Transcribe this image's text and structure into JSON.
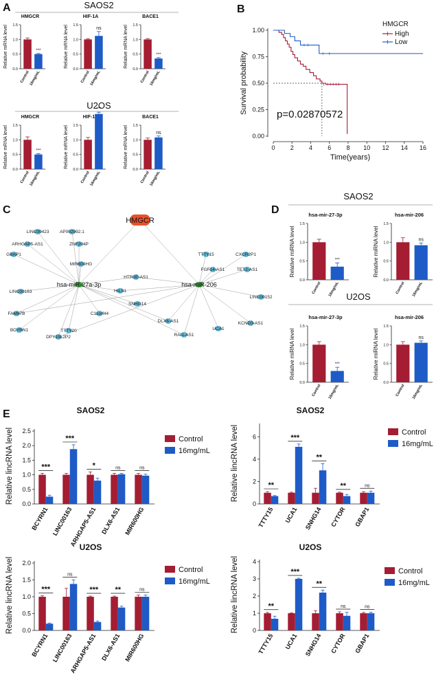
{
  "colors": {
    "control": "#a41d33",
    "treated": "#1e5bc6",
    "node": "#5bb5d4",
    "hub": "#e8522c",
    "mirnode": "#3a9a3a",
    "edge": "#999999",
    "axis": "#222222"
  },
  "panels": {
    "a": "A",
    "b": "B",
    "c": "C",
    "d": "D",
    "e": "E"
  },
  "panelA": {
    "group1": "SAOS2",
    "group2": "U2OS",
    "ylabel": "Relative mRNA level",
    "categories": [
      "Control",
      "16mg/mL"
    ],
    "yticks": [
      "0.0",
      "0.5",
      "1.0",
      "1.5"
    ],
    "charts": [
      {
        "title": "HMGCR",
        "values": [
          1.0,
          0.5
        ],
        "errors": [
          0.05,
          0.02
        ],
        "sig": "***"
      },
      {
        "title": "HIF-1A",
        "values": [
          1.0,
          1.12
        ],
        "errors": [
          0.02,
          0.15
        ],
        "sig": "ns"
      },
      {
        "title": "BACE1",
        "values": [
          1.0,
          0.35
        ],
        "errors": [
          0.03,
          0.03
        ],
        "sig": "***"
      },
      {
        "title": "HMGCR",
        "values": [
          1.0,
          0.5
        ],
        "errors": [
          0.1,
          0.03
        ],
        "sig": "***"
      },
      {
        "title": "HIF-1A",
        "values": [
          1.0,
          1.88
        ],
        "errors": [
          0.08,
          0.06
        ],
        "sig": "***"
      },
      {
        "title": "BACE1",
        "values": [
          1.0,
          1.08
        ],
        "errors": [
          0.06,
          0.05
        ],
        "sig": "ns"
      }
    ]
  },
  "panelB": {
    "legend_title": "HMGCR",
    "legend": [
      "High",
      "Low"
    ],
    "ylabel": "Survival probability",
    "xlabel": "Time(years)",
    "pvalue": "p=0.02870572",
    "xticks": [
      "0",
      "2",
      "4",
      "6",
      "8",
      "10",
      "12",
      "14",
      "16"
    ],
    "yticks": [
      "0.00",
      "0.25",
      "0.50",
      "0.75",
      "1.00"
    ],
    "median_x": 5.2
  },
  "panelC": {
    "hub": "HMGCR",
    "mir1": "hsa-miR-27a-3p",
    "mir2": "hsa-miR-206",
    "left": [
      "LINC00423",
      "AP002992.1",
      "ARHGAP5-AS1",
      "ZNF204P",
      "GBAP1",
      "MIR600HG",
      "LINC00163",
      "FAM87B",
      "BCYRN1",
      "DPY19L2P2",
      "TTTY20",
      "C11orf44",
      "HILS1",
      "SNHG14",
      "HTR3E-AS1"
    ],
    "right": [
      "TTTY15",
      "CXCR2P1",
      "FGF14-AS1",
      "TET2-AS1",
      "LINC00152",
      "KCND3-AS1",
      "UCA1",
      "RAI1-AS1",
      "DLX6-AS1"
    ]
  },
  "panelD": {
    "group1": "SAOS2",
    "group2": "U2OS",
    "ylabel": "Relative miRNA level",
    "categories": [
      "Control",
      "16mg/mL"
    ],
    "yticks": [
      "0.0",
      "0.5",
      "1.0",
      "1.5"
    ],
    "charts": [
      {
        "title": "hsa-mir-27-3p",
        "values": [
          1.0,
          0.35
        ],
        "errors": [
          0.08,
          0.1
        ],
        "sig": "***"
      },
      {
        "title": "hsa-mir-206",
        "values": [
          1.0,
          0.92
        ],
        "errors": [
          0.12,
          0.06
        ],
        "sig": "ns"
      },
      {
        "title": "hsa-mir-27-3p",
        "values": [
          1.0,
          0.3
        ],
        "errors": [
          0.08,
          0.1
        ],
        "sig": "***"
      },
      {
        "title": "hsa-mir-206",
        "values": [
          1.0,
          1.05
        ],
        "errors": [
          0.08,
          0.05
        ],
        "sig": "ns"
      }
    ]
  },
  "panelE": {
    "ylabel": "Relative lincRNA level",
    "legend": [
      "Control",
      "16mg/mL"
    ]
  },
  "chart_data": [
    {
      "type": "bar",
      "title": "SAOS2",
      "categories": [
        "BCYRN1",
        "LINC00163",
        "ARHGAP5-AS1",
        "DLX6-AS1",
        "MIR600HG"
      ],
      "series": [
        {
          "name": "Control",
          "values": [
            1.0,
            1.0,
            1.0,
            1.0,
            1.0
          ]
        },
        {
          "name": "16mg/mL",
          "values": [
            0.25,
            1.88,
            0.8,
            1.02,
            0.97
          ]
        }
      ],
      "errors": [
        [
          0.05,
          0.05,
          0.1,
          0.05,
          0.05
        ],
        [
          0.05,
          0.15,
          0.08,
          0.03,
          0.05
        ]
      ],
      "sig": [
        "***",
        "***",
        "*",
        "ns",
        "ns"
      ],
      "ylabel": "Relative lincRNA level",
      "ylim": [
        0,
        2.5
      ],
      "yticks": [
        "0.0",
        "0.5",
        "1.0",
        "1.5",
        "2.0",
        "2.5"
      ]
    },
    {
      "type": "bar",
      "title": "SAOS2",
      "categories": [
        "TTTY15",
        "UCA1",
        "SNHG14",
        "CYTOR",
        "GBAP1"
      ],
      "series": [
        {
          "name": "Control",
          "values": [
            1.0,
            1.0,
            1.0,
            1.0,
            1.0
          ]
        },
        {
          "name": "16mg/mL",
          "values": [
            0.7,
            5.1,
            3.0,
            0.7,
            1.0
          ]
        }
      ],
      "errors": [
        [
          0.1,
          0.05,
          0.4,
          0.05,
          0.1
        ],
        [
          0.05,
          0.25,
          0.6,
          0.15,
          0.15
        ]
      ],
      "sig": [
        "**",
        "***",
        "**",
        "**",
        "ns"
      ],
      "ylabel": "Relative lincRNA level",
      "ylim": [
        0,
        7
      ],
      "yticks": [
        "0",
        "2",
        "4",
        "6"
      ]
    },
    {
      "type": "bar",
      "title": "U2OS",
      "categories": [
        "BCYRN1",
        "LINC00163",
        "ARHGAP5-AS1",
        "DLX6-AS1",
        "MIR600HG"
      ],
      "series": [
        {
          "name": "Control",
          "values": [
            1.0,
            1.0,
            1.0,
            1.0,
            1.0
          ]
        },
        {
          "name": "16mg/mL",
          "values": [
            0.2,
            1.38,
            0.25,
            0.68,
            1.0
          ]
        }
      ],
      "errors": [
        [
          0.03,
          0.25,
          0.02,
          0.02,
          0.05
        ],
        [
          0.02,
          0.12,
          0.03,
          0.04,
          0.05
        ]
      ],
      "sig": [
        "***",
        "ns",
        "***",
        "**",
        "ns"
      ],
      "ylabel": "Relative lincRNA level",
      "ylim": [
        0,
        2.0
      ],
      "yticks": [
        "0.0",
        "0.5",
        "1.0",
        "1.5",
        "2.0"
      ]
    },
    {
      "type": "bar",
      "title": "U2OS",
      "categories": [
        "TTTY15",
        "UCA1",
        "SNHG14",
        "CYTOR",
        "GBAP1"
      ],
      "series": [
        {
          "name": "Control",
          "values": [
            1.0,
            1.0,
            1.0,
            1.0,
            1.0
          ]
        },
        {
          "name": "16mg/mL",
          "values": [
            0.68,
            3.0,
            2.2,
            0.85,
            1.0
          ]
        }
      ],
      "errors": [
        [
          0.05,
          0.03,
          0.15,
          0.08,
          0.05
        ],
        [
          0.15,
          0.04,
          0.15,
          0.2,
          0.06
        ]
      ],
      "sig": [
        "**",
        "***",
        "**",
        "ns",
        "ns"
      ],
      "ylabel": "Relative lincRNA level",
      "ylim": [
        0,
        4
      ],
      "yticks": [
        "0",
        "1",
        "2",
        "3",
        "4"
      ]
    }
  ]
}
